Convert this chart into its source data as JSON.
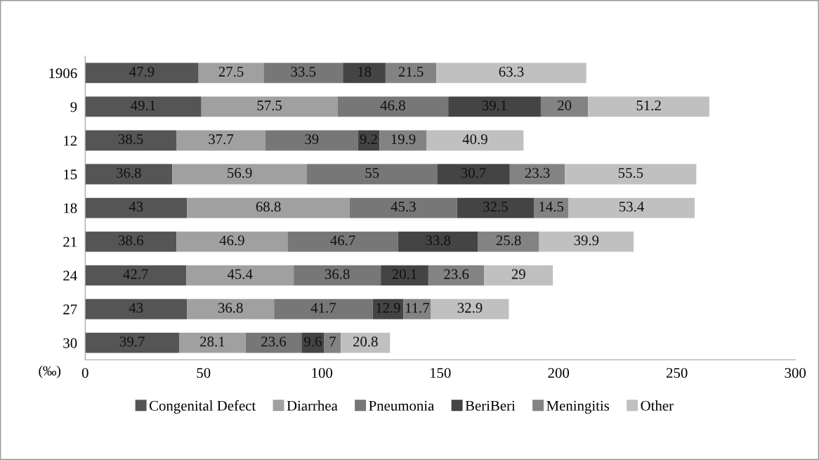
{
  "chart_data": {
    "type": "bar",
    "orientation": "horizontal",
    "stacked": true,
    "data_labels": true,
    "legend": "bottom",
    "grid": false,
    "xlabel": "(‰)",
    "categories": [
      "1906",
      "9",
      "12",
      "15",
      "18",
      "21",
      "24",
      "27",
      "30"
    ],
    "xlim": [
      0,
      300
    ],
    "xticks": [
      0,
      50,
      100,
      150,
      200,
      250,
      300
    ],
    "series": [
      {
        "name": "Congenital Defect",
        "color": "#555555",
        "values": [
          47.9,
          49.1,
          38.5,
          36.8,
          43,
          38.6,
          42.7,
          43,
          39.7
        ]
      },
      {
        "name": "Diarrhea",
        "color": "#a0a0a0",
        "values": [
          27.5,
          57.5,
          37.7,
          56.9,
          68.8,
          46.9,
          45.4,
          36.8,
          28.1
        ]
      },
      {
        "name": "Pneumonia",
        "color": "#777777",
        "values": [
          33.5,
          46.8,
          39,
          55,
          45.3,
          46.7,
          36.8,
          41.7,
          23.6
        ]
      },
      {
        "name": "BeriBeri",
        "color": "#444444",
        "values": [
          18,
          39.1,
          9.2,
          30.7,
          32.5,
          33.8,
          20.1,
          12.9,
          9.6
        ]
      },
      {
        "name": "Meningitis",
        "color": "#838383",
        "values": [
          21.5,
          20,
          19.9,
          23.3,
          14.5,
          25.8,
          23.6,
          11.7,
          7
        ]
      },
      {
        "name": "Other",
        "color": "#c0c0c0",
        "values": [
          63.3,
          51.2,
          40.9,
          55.5,
          53.4,
          39.9,
          29,
          32.9,
          20.8
        ]
      }
    ]
  }
}
